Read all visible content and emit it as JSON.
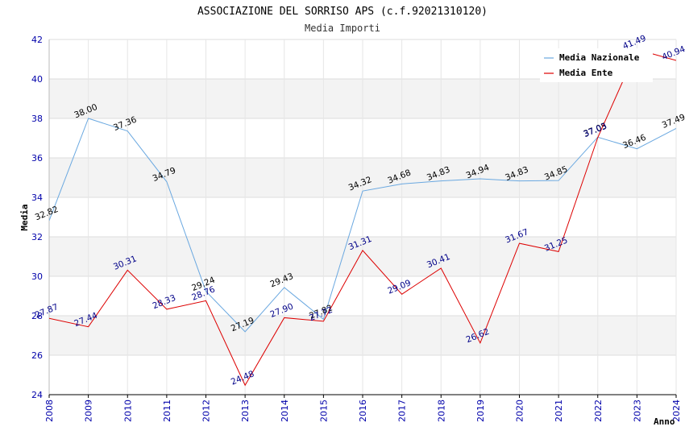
{
  "chart_data": {
    "type": "line",
    "title": "ASSOCIAZIONE DEL SORRISO APS (c.f.92021310120)",
    "subtitle": "Media Importi",
    "xlabel": "Anno",
    "ylabel": "Media",
    "ylim": [
      24,
      42
    ],
    "yticks": [
      "24",
      "26",
      "28",
      "30",
      "32",
      "34",
      "36",
      "38",
      "40",
      "42"
    ],
    "categories": [
      "2008",
      "2009",
      "2010",
      "2011",
      "2012",
      "2013",
      "2014",
      "2015",
      "2016",
      "2017",
      "2018",
      "2019",
      "2020",
      "2021",
      "2022",
      "2023",
      "2024"
    ],
    "grid": true,
    "legend_position": "top-right",
    "series": [
      {
        "name": "Media Nazionale",
        "color": "#6aa8e0",
        "label_color": "#000000",
        "values": [
          32.82,
          38.0,
          37.36,
          34.79,
          29.24,
          27.19,
          29.43,
          27.82,
          34.32,
          34.68,
          34.83,
          34.94,
          34.83,
          34.85,
          37.05,
          36.46,
          37.49
        ],
        "labels": [
          "32.82",
          "38.00",
          "37.36",
          "34.79",
          "29.24",
          "27.19",
          "29.43",
          "27.82",
          "34.32",
          "34.68",
          "34.83",
          "34.94",
          "34.83",
          "34.85",
          "37.05",
          "36.46",
          "37.49"
        ]
      },
      {
        "name": "Media Ente",
        "color": "#dd0000",
        "label_color": "#000088",
        "values": [
          27.87,
          27.44,
          30.31,
          28.33,
          28.76,
          24.48,
          27.9,
          27.72,
          31.31,
          29.09,
          30.41,
          26.62,
          31.67,
          31.25,
          37.03,
          41.49,
          40.94
        ],
        "labels": [
          "27.87",
          "27.44",
          "30.31",
          "28.33",
          "28.76",
          "24.48",
          "27.90",
          "27.72",
          "31.31",
          "29.09",
          "30.41",
          "26.62",
          "31.67",
          "31.25",
          "37.03",
          "41.49",
          "40.94"
        ]
      }
    ]
  }
}
